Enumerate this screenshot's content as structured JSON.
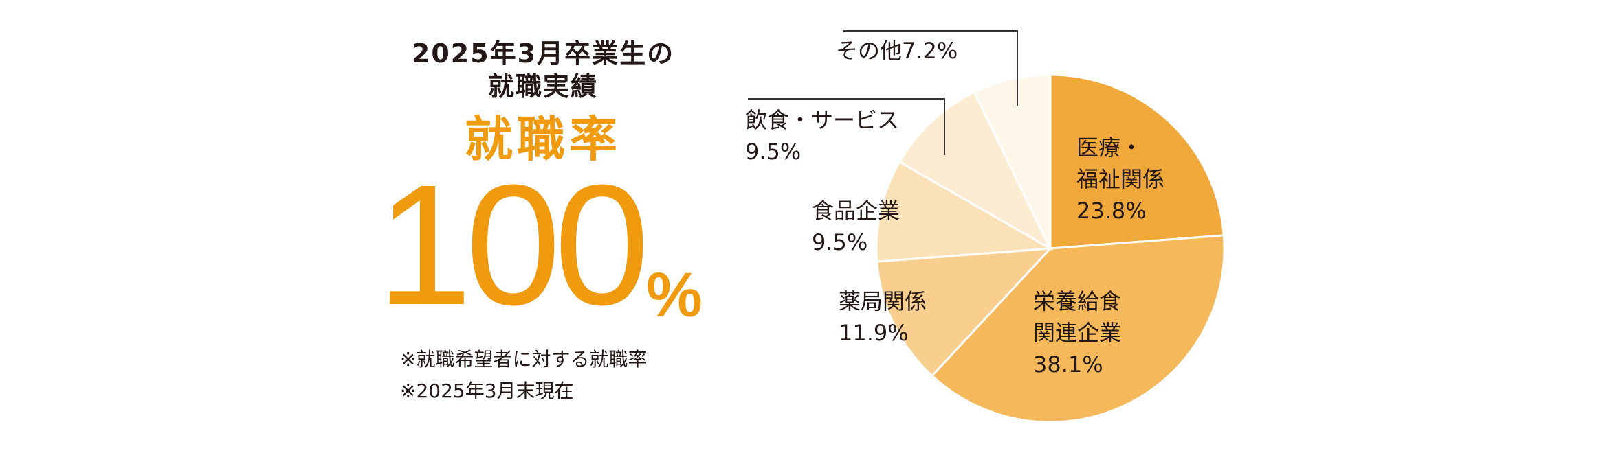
{
  "heading": {
    "line1": "2025年3月卒業生の",
    "line2": "就職実績"
  },
  "rate": {
    "label": "就職率",
    "value": "100",
    "unit": "%"
  },
  "notes": [
    "※就職希望者に対する就職率",
    "※2025年3月末現在"
  ],
  "colors": {
    "accent": "#ef9a0f",
    "text": "#231815",
    "leader_line": "#333333"
  },
  "chart_data": {
    "type": "pie",
    "start": "12 o'clock, clockwise",
    "slices": [
      {
        "name_lines": [
          "医療・",
          "福祉関係"
        ],
        "pct_label": "23.8%",
        "value": 23.8,
        "color": "#f1a83b"
      },
      {
        "name_lines": [
          "栄養給食",
          "関連企業"
        ],
        "pct_label": "38.1%",
        "value": 38.1,
        "color": "#f5b95c"
      },
      {
        "name_lines": [
          "薬局関係"
        ],
        "pct_label": "11.9%",
        "value": 11.9,
        "color": "#f9cf8f"
      },
      {
        "name_lines": [
          "食品企業"
        ],
        "pct_label": "9.5%",
        "value": 9.5,
        "color": "#fbe1b8"
      },
      {
        "name_lines": [
          "飲食・サービス"
        ],
        "pct_label": "9.5%",
        "value": 9.5,
        "color": "#fdecd2"
      },
      {
        "name_lines": [
          "その他7.2%"
        ],
        "pct_label": "",
        "value": 7.2,
        "color": "#fff6ea"
      }
    ]
  }
}
